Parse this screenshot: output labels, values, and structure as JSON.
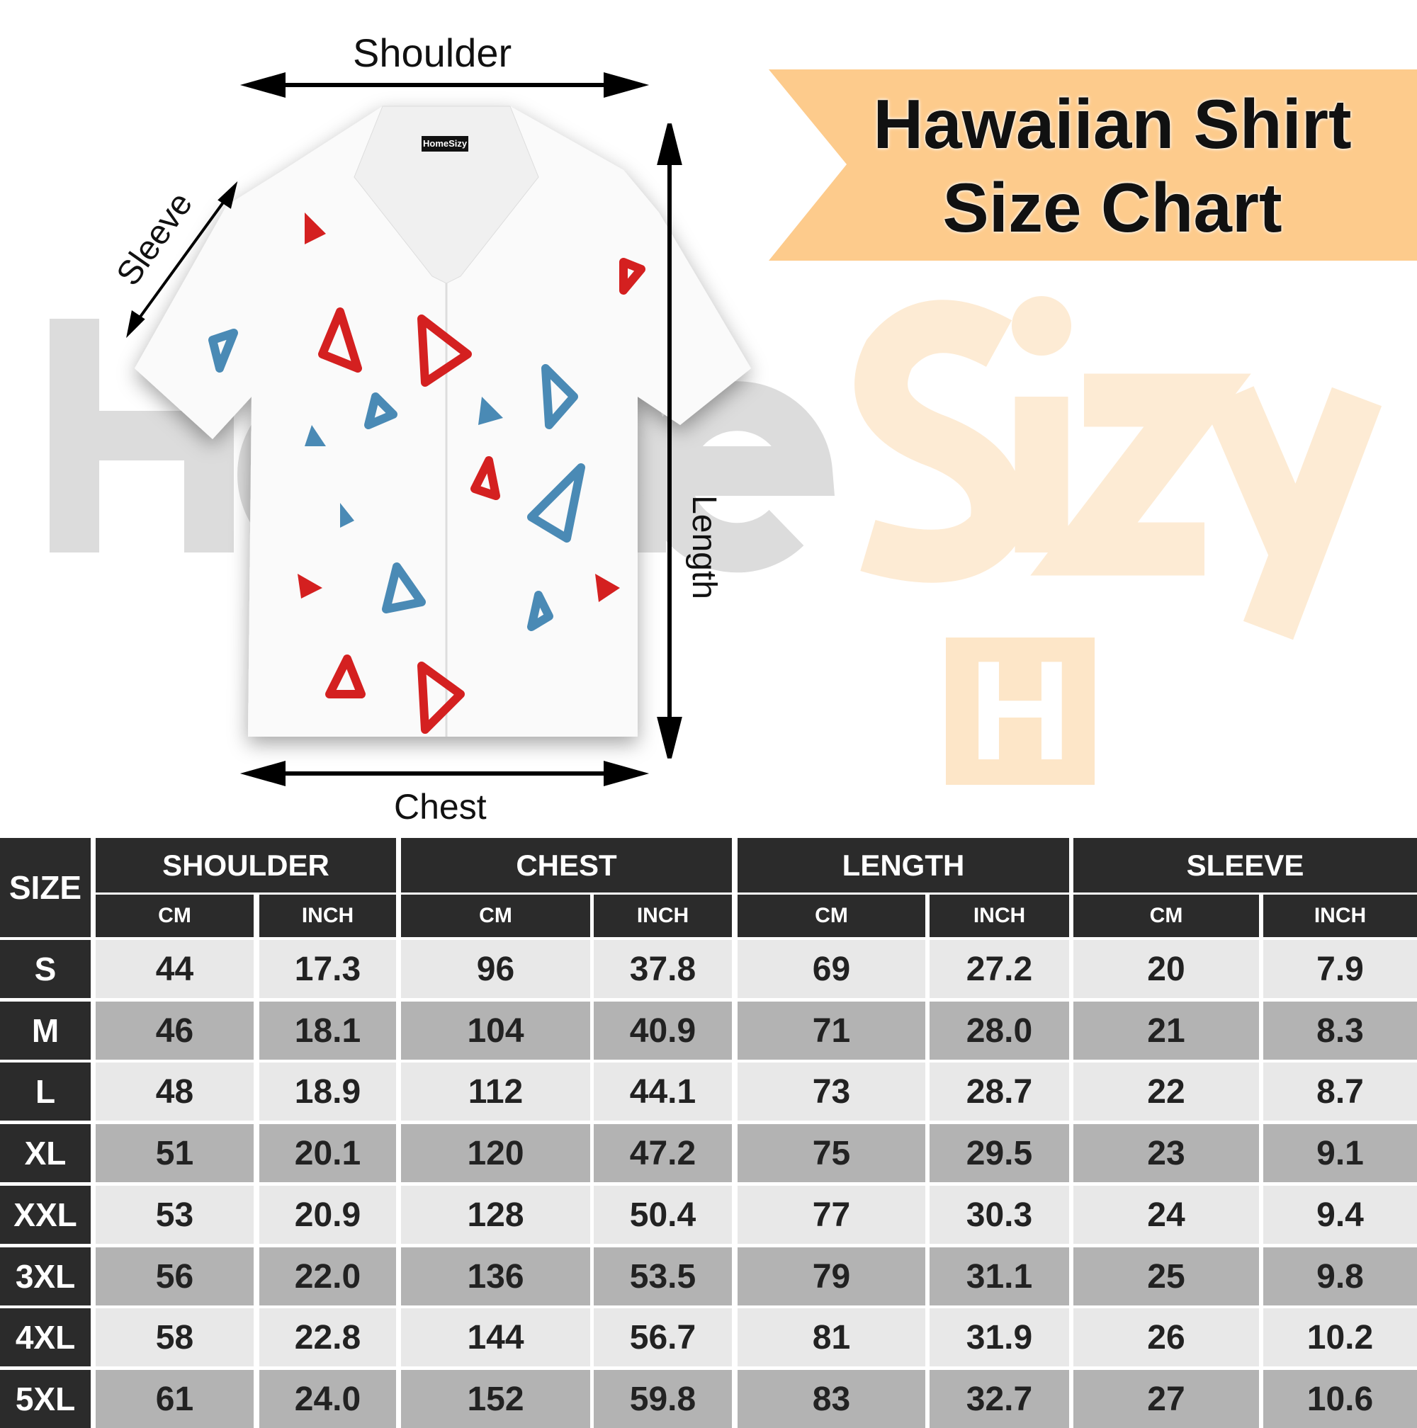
{
  "watermark": {
    "brand": "HomeSizy",
    "logo_letter": "H"
  },
  "banner": {
    "line1": "Hawaiian Shirt",
    "line2": "Size Chart",
    "color": "#fdcb8c"
  },
  "diagram": {
    "shoulder": "Shoulder",
    "sleeve": "Sleeve",
    "length": "Length",
    "chest": "Chest",
    "tag": "HomeSizy"
  },
  "colors": {
    "header": "#2b2b2b",
    "row_light": "#e8e8e8",
    "row_dark": "#b3b3b3",
    "red": "#d42020",
    "blue": "#4a8ab5"
  },
  "table": {
    "size_header": "SIZE",
    "groups": [
      "SHOULDER",
      "CHEST",
      "LENGTH",
      "SLEEVE"
    ],
    "units": [
      "CM",
      "INCH",
      "CM",
      "INCH",
      "CM",
      "INCH",
      "CM",
      "INCH"
    ],
    "rows": [
      {
        "size": "S",
        "values": [
          "44",
          "17.3",
          "96",
          "37.8",
          "69",
          "27.2",
          "20",
          "7.9"
        ]
      },
      {
        "size": "M",
        "values": [
          "46",
          "18.1",
          "104",
          "40.9",
          "71",
          "28.0",
          "21",
          "8.3"
        ]
      },
      {
        "size": "L",
        "values": [
          "48",
          "18.9",
          "112",
          "44.1",
          "73",
          "28.7",
          "22",
          "8.7"
        ]
      },
      {
        "size": "XL",
        "values": [
          "51",
          "20.1",
          "120",
          "47.2",
          "75",
          "29.5",
          "23",
          "9.1"
        ]
      },
      {
        "size": "XXL",
        "values": [
          "53",
          "20.9",
          "128",
          "50.4",
          "77",
          "30.3",
          "24",
          "9.4"
        ]
      },
      {
        "size": "3XL",
        "values": [
          "56",
          "22.0",
          "136",
          "53.5",
          "79",
          "31.1",
          "25",
          "9.8"
        ]
      },
      {
        "size": "4XL",
        "values": [
          "58",
          "22.8",
          "144",
          "56.7",
          "81",
          "31.9",
          "26",
          "10.2"
        ]
      },
      {
        "size": "5XL",
        "values": [
          "61",
          "24.0",
          "152",
          "59.8",
          "83",
          "32.7",
          "27",
          "10.6"
        ]
      }
    ]
  }
}
